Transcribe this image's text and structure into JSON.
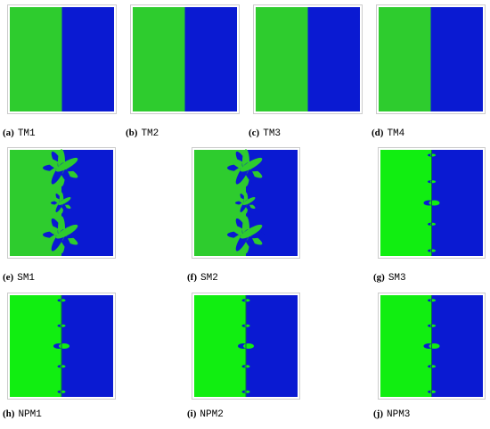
{
  "panels": [
    {
      "label": "(a)",
      "name": "TM1"
    },
    {
      "label": "(b)",
      "name": "TM2"
    },
    {
      "label": "(c)",
      "name": "TM3"
    },
    {
      "label": "(d)",
      "name": "TM4"
    },
    {
      "label": "(e)",
      "name": "SM1"
    },
    {
      "label": "(f)",
      "name": "SM2"
    },
    {
      "label": "(g)",
      "name": "SM3"
    },
    {
      "label": "(h)",
      "name": "NPM1"
    },
    {
      "label": "(i)",
      "name": "NPM2"
    },
    {
      "label": "(j)",
      "name": "NPM3"
    }
  ]
}
